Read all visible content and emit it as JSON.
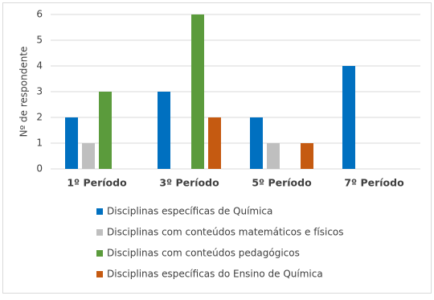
{
  "chart_data": {
    "type": "bar",
    "y_label": "Nº de respondente",
    "categories": [
      "1º Período",
      "3º Período",
      "5º Período",
      "7º Período"
    ],
    "series": [
      {
        "name": "Disciplinas específicas de Química",
        "color": "#0070c0",
        "values": [
          2,
          3,
          2,
          4
        ]
      },
      {
        "name": "Disciplinas com conteúdos matemáticos e físicos",
        "color": "#bfbfbf",
        "values": [
          1,
          0,
          1,
          0
        ]
      },
      {
        "name": "Disciplinas com conteúdos pedagógicos",
        "color": "#5b9b3c",
        "values": [
          3,
          6,
          0,
          0
        ]
      },
      {
        "name": "Disciplinas específicas do Ensino de Química",
        "color": "#c55a11",
        "values": [
          0,
          2,
          1,
          0
        ]
      }
    ],
    "ylim": [
      0,
      6
    ],
    "yticks": [
      0,
      1,
      2,
      3,
      4,
      5,
      6
    ],
    "grid": true,
    "legend": "bottom"
  }
}
